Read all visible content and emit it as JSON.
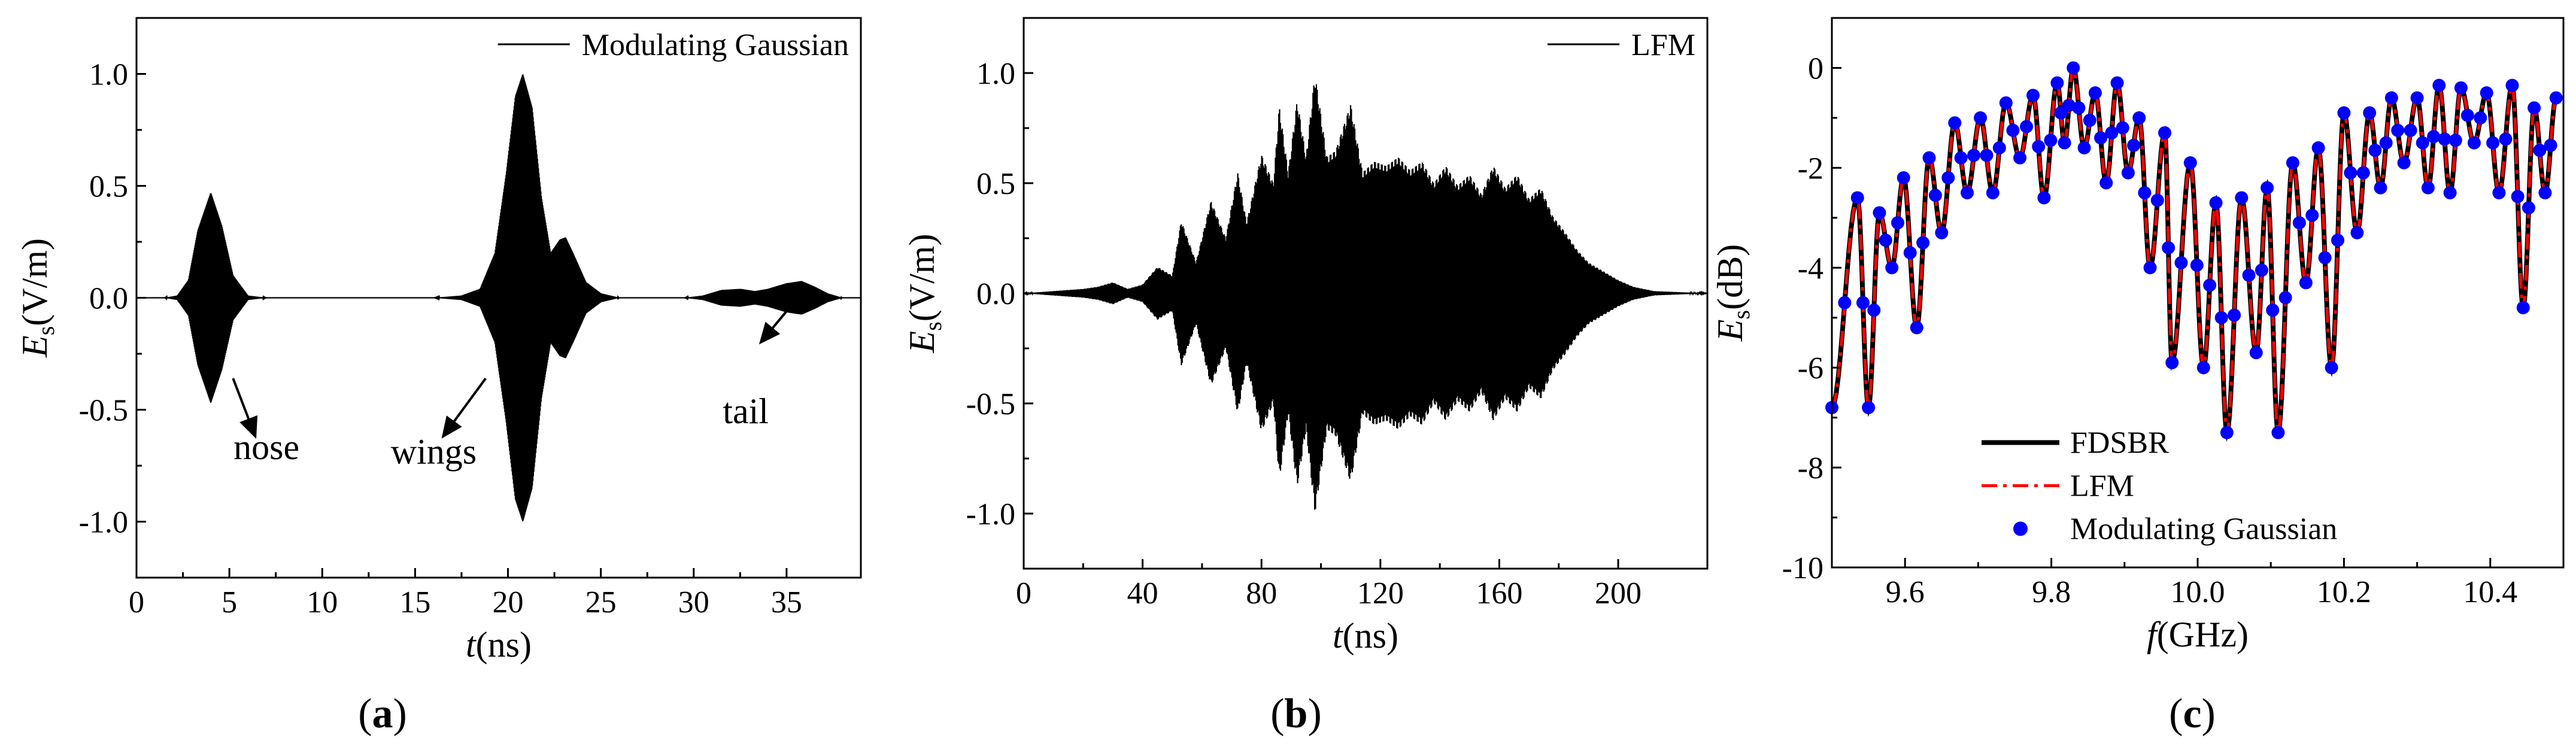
{
  "chart_data": [
    {
      "id": "a",
      "type": "line",
      "panel_label": "a",
      "xlabel": {
        "var": "t",
        "unit": "(ns)"
      },
      "ylabel": {
        "var": "E",
        "sub": "s",
        "unit": "(V/m)"
      },
      "xlim": [
        0,
        39
      ],
      "ylim": [
        -1.25,
        1.25
      ],
      "xticks": [
        0,
        5,
        10,
        15,
        20,
        25,
        30,
        35
      ],
      "yticks": [
        -1.0,
        -0.5,
        0.0,
        0.5,
        1.0
      ],
      "ytick_labels": [
        "-1.0",
        "-0.5",
        "0.0",
        "0.5",
        "1.0"
      ],
      "legend": [
        "Modulating Gaussian"
      ],
      "legend_position": "top-right",
      "series": [
        {
          "name": "Modulating Gaussian",
          "color": "#000000",
          "envelope": [
            [
              0,
              0
            ],
            [
              1.5,
              0
            ],
            [
              2.2,
              0.01
            ],
            [
              2.8,
              0.08
            ],
            [
              3.3,
              0.3
            ],
            [
              4.0,
              0.47
            ],
            [
              4.6,
              0.32
            ],
            [
              5.2,
              0.1
            ],
            [
              6.0,
              0.01
            ],
            [
              7,
              0
            ],
            [
              16,
              0
            ],
            [
              17.5,
              0.01
            ],
            [
              18.5,
              0.04
            ],
            [
              19.3,
              0.2
            ],
            [
              19.9,
              0.55
            ],
            [
              20.4,
              0.9
            ],
            [
              20.8,
              1.0
            ],
            [
              21.3,
              0.85
            ],
            [
              21.8,
              0.45
            ],
            [
              22.3,
              0.2
            ],
            [
              22.8,
              0.26
            ],
            [
              23.1,
              0.27
            ],
            [
              23.5,
              0.2
            ],
            [
              24.2,
              0.07
            ],
            [
              25.0,
              0.02
            ],
            [
              26,
              0
            ],
            [
              29.5,
              0
            ],
            [
              30.5,
              0.01
            ],
            [
              31.5,
              0.035
            ],
            [
              32.5,
              0.04
            ],
            [
              33.3,
              0.03
            ],
            [
              34.0,
              0.04
            ],
            [
              35.0,
              0.065
            ],
            [
              35.8,
              0.075
            ],
            [
              36.5,
              0.05
            ],
            [
              37.2,
              0.02
            ],
            [
              38,
              0
            ],
            [
              39,
              0
            ]
          ]
        }
      ],
      "annotations": [
        {
          "text": "nose",
          "arrow_from": [
            5.2,
            -0.36
          ],
          "arrow_to": [
            6.4,
            -0.62
          ],
          "label_at": [
            7.0,
            -0.72
          ]
        },
        {
          "text": "wings",
          "arrow_from": [
            18.8,
            -0.36
          ],
          "arrow_to": [
            16.5,
            -0.62
          ],
          "label_at": [
            16.0,
            -0.74
          ]
        },
        {
          "text": "tail",
          "arrow_from": [
            36.2,
            0.06
          ],
          "arrow_to": [
            33.6,
            -0.2
          ],
          "label_at": [
            32.8,
            -0.56
          ]
        }
      ]
    },
    {
      "id": "b",
      "type": "line",
      "panel_label": "b",
      "xlabel": {
        "var": "t",
        "unit": "(ns)"
      },
      "ylabel": {
        "var": "E",
        "sub": "s",
        "unit": "(V/m)"
      },
      "xlim": [
        0,
        230
      ],
      "ylim": [
        -1.25,
        1.25
      ],
      "xticks": [
        0,
        40,
        80,
        120,
        160,
        200
      ],
      "yticks": [
        -1.0,
        -0.5,
        0.0,
        0.5,
        1.0
      ],
      "ytick_labels": [
        "-1.0",
        "-0.5",
        "0.0",
        "0.5",
        "1.0"
      ],
      "legend": [
        "LFM"
      ],
      "legend_position": "top-right",
      "series": [
        {
          "name": "LFM",
          "color": "#000000",
          "envelope": [
            [
              0,
              0
            ],
            [
              10,
              0.01
            ],
            [
              20,
              0.02
            ],
            [
              25,
              0.03
            ],
            [
              30,
              0.05
            ],
            [
              35,
              0.02
            ],
            [
              40,
              0.04
            ],
            [
              45,
              0.12
            ],
            [
              50,
              0.08
            ],
            [
              53,
              0.33
            ],
            [
              58,
              0.14
            ],
            [
              63,
              0.42
            ],
            [
              68,
              0.25
            ],
            [
              72,
              0.55
            ],
            [
              75,
              0.32
            ],
            [
              80,
              0.63
            ],
            [
              84,
              0.5
            ],
            [
              86,
              0.85
            ],
            [
              89,
              0.55
            ],
            [
              92,
              0.88
            ],
            [
              95,
              0.62
            ],
            [
              98,
              1.0
            ],
            [
              102,
              0.62
            ],
            [
              105,
              0.65
            ],
            [
              110,
              0.86
            ],
            [
              114,
              0.55
            ],
            [
              118,
              0.6
            ],
            [
              122,
              0.58
            ],
            [
              126,
              0.62
            ],
            [
              130,
              0.56
            ],
            [
              134,
              0.6
            ],
            [
              138,
              0.5
            ],
            [
              142,
              0.58
            ],
            [
              146,
              0.49
            ],
            [
              150,
              0.54
            ],
            [
              154,
              0.45
            ],
            [
              158,
              0.58
            ],
            [
              162,
              0.48
            ],
            [
              166,
              0.54
            ],
            [
              170,
              0.43
            ],
            [
              174,
              0.48
            ],
            [
              178,
              0.35
            ],
            [
              182,
              0.28
            ],
            [
              186,
              0.2
            ],
            [
              190,
              0.14
            ],
            [
              195,
              0.1
            ],
            [
              200,
              0.06
            ],
            [
              205,
              0.03
            ],
            [
              212,
              0.01
            ],
            [
              230,
              0
            ]
          ]
        }
      ]
    },
    {
      "id": "c",
      "type": "line",
      "panel_label": "c",
      "xlabel": {
        "var": "f",
        "unit": "(GHz)"
      },
      "ylabel": {
        "var": "E",
        "sub": "s",
        "unit": "(dB)"
      },
      "xlim": [
        9.5,
        10.5
      ],
      "ylim": [
        -10,
        1
      ],
      "xticks": [
        9.6,
        9.8,
        10.0,
        10.2,
        10.4
      ],
      "xtick_labels": [
        "9.6",
        "9.8",
        "10.0",
        "10.2",
        "10.4"
      ],
      "yticks": [
        -10,
        -8,
        -6,
        -4,
        -2,
        0
      ],
      "ytick_labels": [
        "-10",
        "-8",
        "-6",
        "-4",
        "-2",
        "0"
      ],
      "legend": [
        "FDSBR",
        "LFM",
        "Modulating Gaussian"
      ],
      "legend_position": "bottom-left",
      "peaks": [
        [
          9.535,
          -2.6
        ],
        [
          9.565,
          -2.9
        ],
        [
          9.598,
          -2.2
        ],
        [
          9.633,
          -1.8
        ],
        [
          9.668,
          -1.1
        ],
        [
          9.703,
          -1.0
        ],
        [
          9.738,
          -0.7
        ],
        [
          9.775,
          -0.55
        ],
        [
          9.808,
          -0.3
        ],
        [
          9.83,
          0.0
        ],
        [
          9.86,
          -0.5
        ],
        [
          9.89,
          -0.3
        ],
        [
          9.92,
          -1.0
        ],
        [
          9.955,
          -1.3
        ],
        [
          9.99,
          -1.9
        ],
        [
          10.025,
          -2.7
        ],
        [
          10.06,
          -2.6
        ],
        [
          10.095,
          -2.4
        ],
        [
          10.13,
          -1.9
        ],
        [
          10.165,
          -1.6
        ],
        [
          10.2,
          -0.9
        ],
        [
          10.235,
          -0.9
        ],
        [
          10.265,
          -0.6
        ],
        [
          10.3,
          -0.6
        ],
        [
          10.33,
          -0.35
        ],
        [
          10.36,
          -0.4
        ],
        [
          10.395,
          -0.5
        ],
        [
          10.43,
          -0.35
        ],
        [
          10.46,
          -0.8
        ],
        [
          10.49,
          -0.6
        ]
      ],
      "troughs": [
        [
          9.5,
          -6.8
        ],
        [
          9.55,
          -6.8
        ],
        [
          9.582,
          -4.0
        ],
        [
          9.616,
          -5.2
        ],
        [
          9.65,
          -3.3
        ],
        [
          9.685,
          -2.5
        ],
        [
          9.72,
          -2.5
        ],
        [
          9.757,
          -1.8
        ],
        [
          9.79,
          -2.6
        ],
        [
          9.818,
          -1.5
        ],
        [
          9.845,
          -1.6
        ],
        [
          9.875,
          -2.3
        ],
        [
          9.905,
          -2.1
        ],
        [
          9.935,
          -4.0
        ],
        [
          9.965,
          -5.9
        ],
        [
          10.008,
          -6.0
        ],
        [
          10.04,
          -7.3
        ],
        [
          10.08,
          -5.7
        ],
        [
          10.11,
          -7.3
        ],
        [
          10.148,
          -4.3
        ],
        [
          10.183,
          -6.0
        ],
        [
          10.218,
          -3.3
        ],
        [
          10.25,
          -2.4
        ],
        [
          10.282,
          -1.9
        ],
        [
          10.315,
          -2.4
        ],
        [
          10.345,
          -2.5
        ],
        [
          10.378,
          -1.5
        ],
        [
          10.412,
          -2.5
        ],
        [
          10.445,
          -4.8
        ],
        [
          10.475,
          -2.5
        ]
      ],
      "series": [
        {
          "name": "FDSBR",
          "color": "#000000",
          "style": "solid"
        },
        {
          "name": "LFM",
          "color": "#ff0000",
          "style": "dash-dot"
        },
        {
          "name": "Modulating Gaussian",
          "color": "#0000ff",
          "style": "markers"
        }
      ]
    }
  ]
}
